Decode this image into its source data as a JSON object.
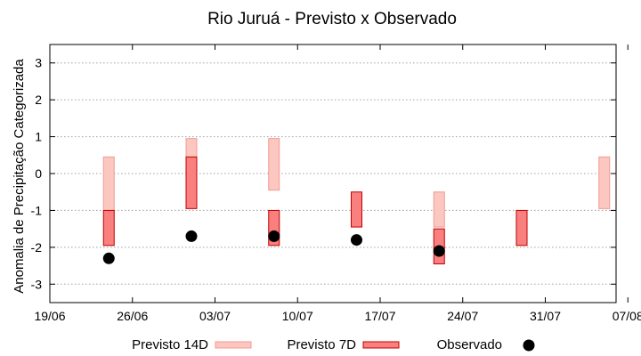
{
  "chart_data": {
    "type": "floating-bar",
    "title": "Rio Juruá - Previsto x Observado",
    "ylabel": "Anomalia de Precipitação Categorizada",
    "xlabel": "",
    "ylim": [
      -3.5,
      3.5
    ],
    "xlim": [
      "2019-06-19",
      "2019-07-08"
    ],
    "yticks": [
      -3,
      -2,
      -1,
      0,
      1,
      2,
      3
    ],
    "xticks": [
      "19/06",
      "26/06",
      "03/07",
      "10/07",
      "17/07",
      "24/07",
      "31/07",
      "07/08"
    ],
    "grid": true,
    "legend_placement": "bottom",
    "colors": {
      "p14_fill": "#fcc7c0",
      "p14_stroke": "#ef9b93",
      "p7_fill": "#fa7f7f",
      "p7_stroke": "#c00000",
      "obs": "#000000"
    },
    "series": [
      {
        "name": "Previsto 14D",
        "kind": "range",
        "points": [
          {
            "x": 5,
            "low": -1,
            "high": 0.45
          },
          {
            "x": 12,
            "low": -0.45,
            "high": 0.95
          },
          {
            "x": 19,
            "low": -0.45,
            "high": 0.95
          },
          {
            "x": 33,
            "low": -1.45,
            "high": -0.5
          },
          {
            "x": 47,
            "low": -0.95,
            "high": 0.45
          }
        ]
      },
      {
        "name": "Previsto 7D",
        "kind": "range",
        "points": [
          {
            "x": 5,
            "low": -1.95,
            "high": -1
          },
          {
            "x": 12,
            "low": -0.95,
            "high": 0.45
          },
          {
            "x": 19,
            "low": -1.95,
            "high": -1
          },
          {
            "x": 26,
            "low": -1.45,
            "high": -0.5
          },
          {
            "x": 33,
            "low": -2.45,
            "high": -1.5
          },
          {
            "x": 40,
            "low": -1.95,
            "high": -1
          }
        ]
      },
      {
        "name": "Observado",
        "kind": "point",
        "points": [
          {
            "x": 5,
            "y": -2.3
          },
          {
            "x": 12,
            "y": -1.7
          },
          {
            "x": 19,
            "y": -1.7
          },
          {
            "x": 26,
            "y": -1.8
          },
          {
            "x": 33,
            "y": -2.1
          }
        ]
      }
    ]
  }
}
